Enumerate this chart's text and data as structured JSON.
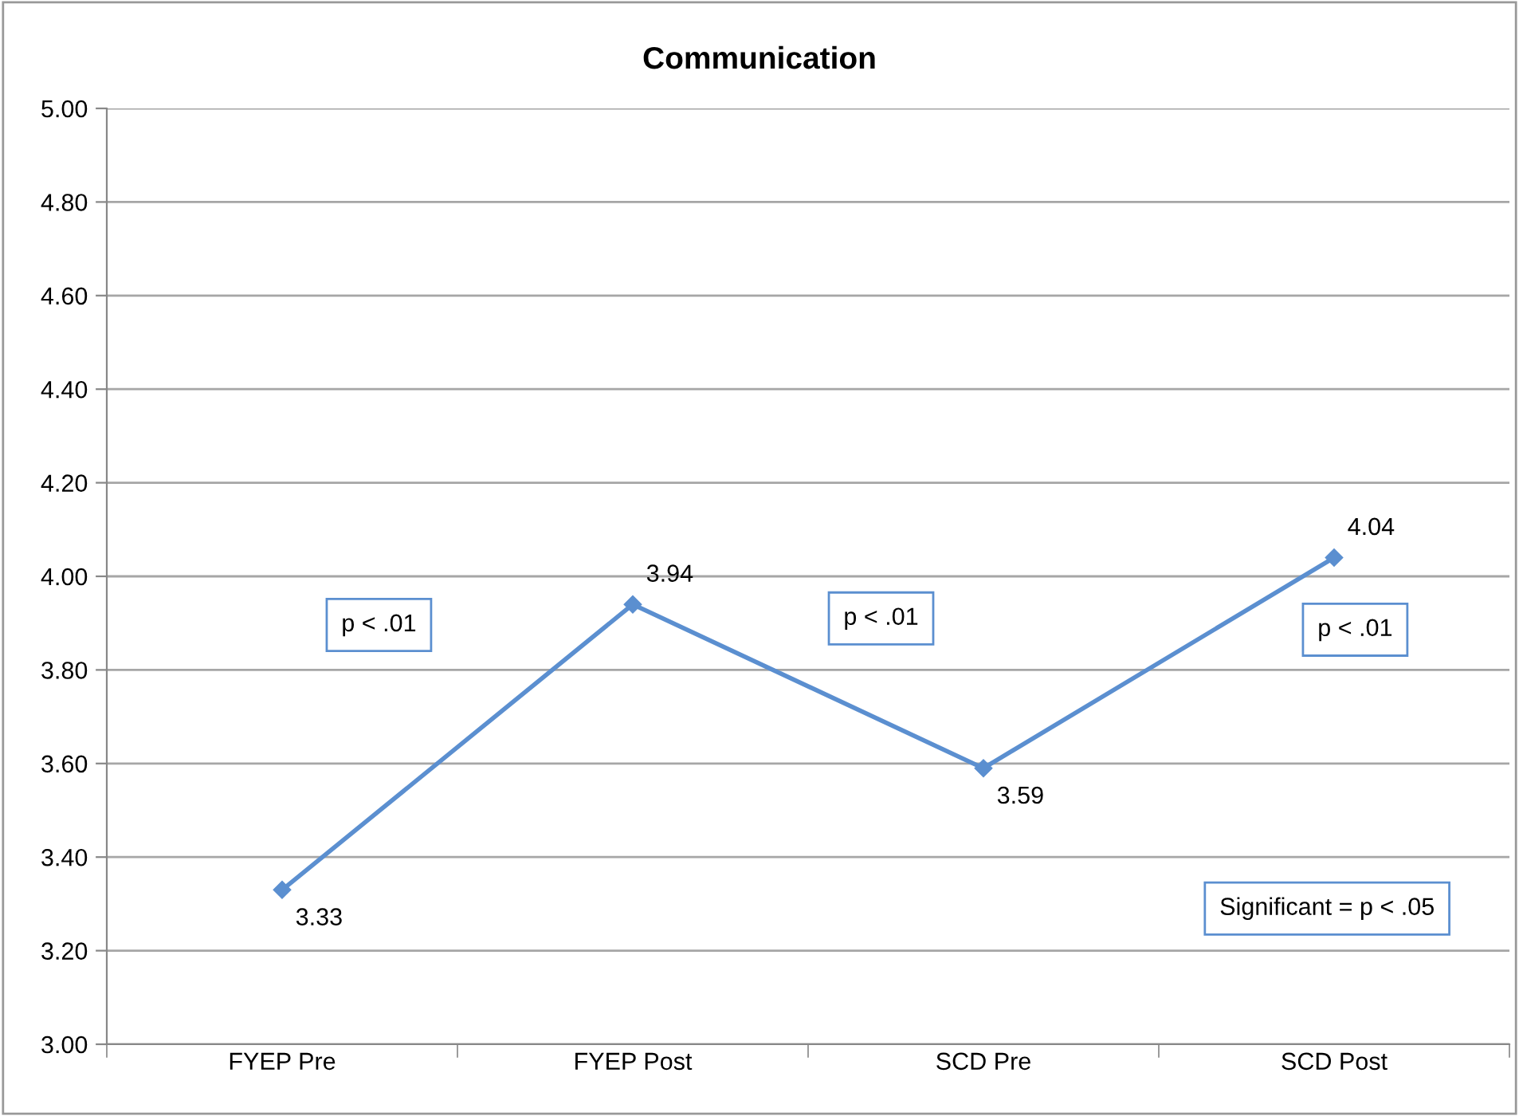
{
  "chart_data": {
    "type": "line",
    "title": "Communication",
    "categories": [
      "FYEP Pre",
      "FYEP Post",
      "SCD Pre",
      "SCD Post"
    ],
    "series": [
      {
        "color": "#5b8fd0",
        "values": [
          3.33,
          3.94,
          3.59,
          4.04
        ]
      }
    ],
    "ylim": [
      3.0,
      5.0
    ],
    "yticks": [
      {
        "value": 3.0,
        "label": "3.00"
      },
      {
        "value": 3.2,
        "label": "3.20"
      },
      {
        "value": 3.4,
        "label": "3.40"
      },
      {
        "value": 3.6,
        "label": "3.60"
      },
      {
        "value": 3.8,
        "label": "3.80"
      },
      {
        "value": 4.0,
        "label": "4.00"
      },
      {
        "value": 4.2,
        "label": "4.20"
      },
      {
        "value": 4.4,
        "label": "4.40"
      },
      {
        "value": 4.6,
        "label": "4.60"
      },
      {
        "value": 4.8,
        "label": "4.80"
      },
      {
        "value": 5.0,
        "label": "5.00"
      }
    ],
    "grid": "y",
    "marker": "diamond",
    "line_style": "solid",
    "data_labels": true,
    "legend": false,
    "annotations": [
      "p < .01",
      "p < .01",
      "p < .01",
      "Significant = p < .05"
    ]
  }
}
